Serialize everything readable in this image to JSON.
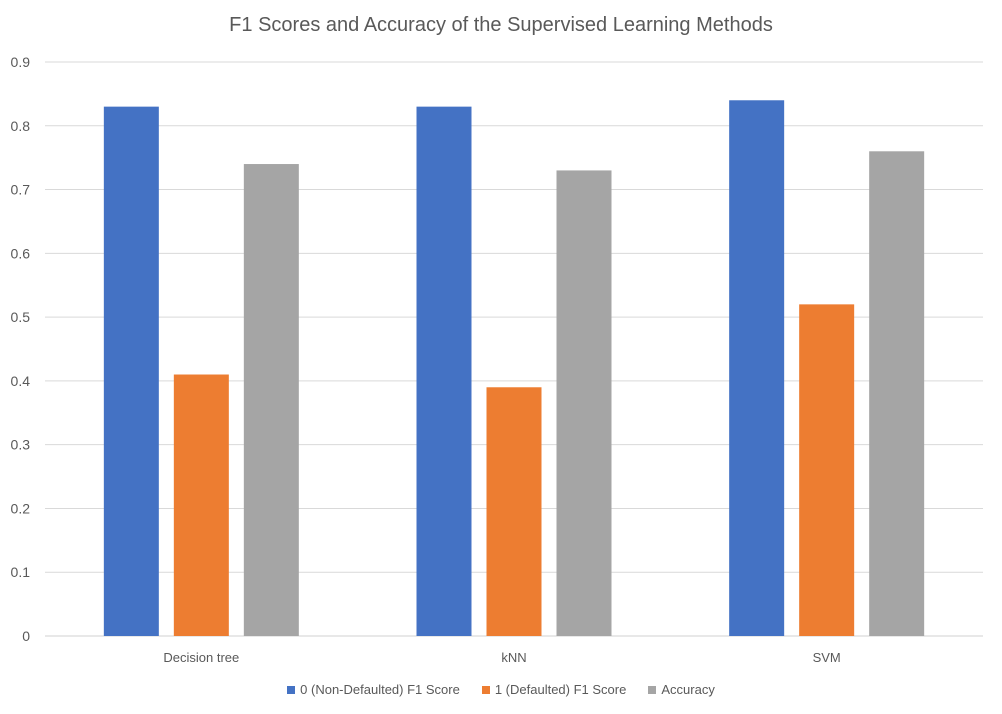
{
  "chart_data": {
    "type": "bar",
    "title": "F1 Scores and Accuracy of the Supervised Learning Methods",
    "categories": [
      "Decision tree",
      "kNN",
      "SVM"
    ],
    "series": [
      {
        "name": "0 (Non-Defaulted) F1 Score",
        "values": [
          0.83,
          0.83,
          0.84
        ],
        "color": "#4472c4"
      },
      {
        "name": "1 (Defaulted) F1 Score",
        "values": [
          0.41,
          0.39,
          0.52
        ],
        "color": "#ed7d31"
      },
      {
        "name": "Accuracy",
        "values": [
          0.74,
          0.73,
          0.76
        ],
        "color": "#a5a5a5"
      }
    ],
    "ylim": [
      0,
      0.9
    ],
    "yticks": [
      "0",
      "0.1",
      "0.2",
      "0.3",
      "0.4",
      "0.5",
      "0.6",
      "0.7",
      "0.8",
      "0.9"
    ],
    "grid": true,
    "legend_position": "bottom",
    "xlabel": "",
    "ylabel": ""
  }
}
